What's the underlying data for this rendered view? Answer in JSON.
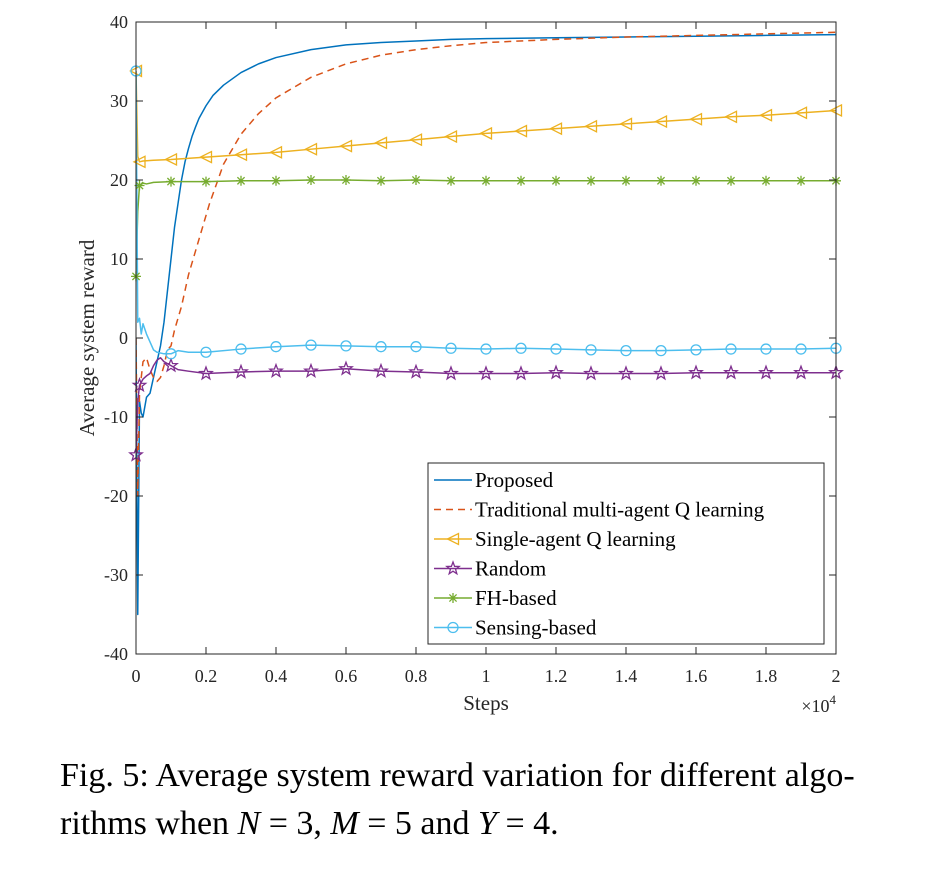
{
  "caption": {
    "line1": "Fig. 5: Average system reward variation for different algo-",
    "line2_prefix": "rithms when ",
    "var_n": "N",
    "eq_n": " = 3, ",
    "var_m": "M",
    "eq_m": " = 5 and ",
    "var_y": "Y",
    "eq_y": " = 4."
  },
  "chart_data": {
    "type": "line",
    "xlabel": "Steps",
    "ylabel": "Average system reward",
    "x_multiplier_label": "×10",
    "x_multiplier_exp": "4",
    "xlim": [
      0,
      2
    ],
    "ylim": [
      -40,
      40
    ],
    "xticks": [
      0,
      0.2,
      0.4,
      0.6,
      0.8,
      1,
      1.2,
      1.4,
      1.6,
      1.8,
      2
    ],
    "xtick_labels": [
      "0",
      "0.2",
      "0.4",
      "0.6",
      "0.8",
      "1",
      "1.2",
      "1.4",
      "1.6",
      "1.8",
      "2"
    ],
    "yticks": [
      -40,
      -30,
      -20,
      -10,
      0,
      10,
      20,
      30,
      40
    ],
    "ytick_labels": [
      "-40",
      "-30",
      "-20",
      "-10",
      "0",
      "10",
      "20",
      "30",
      "40"
    ],
    "legend_position": "bottom-right",
    "series": [
      {
        "name": "Proposed",
        "color": "#0072BD",
        "dash": "solid",
        "marker": "none",
        "x": [
          0,
          0.005,
          0.01,
          0.015,
          0.02,
          0.03,
          0.04,
          0.05,
          0.06,
          0.07,
          0.08,
          0.09,
          0.1,
          0.11,
          0.12,
          0.13,
          0.14,
          0.15,
          0.16,
          0.17,
          0.18,
          0.2,
          0.22,
          0.25,
          0.3,
          0.35,
          0.4,
          0.5,
          0.6,
          0.7,
          0.8,
          0.9,
          1.0,
          1.2,
          1.4,
          1.6,
          1.8,
          2.0
        ],
        "y": [
          0,
          -35,
          -8,
          -9.5,
          -10,
          -7.5,
          -7,
          -5,
          -3,
          -1,
          2,
          6,
          10,
          14,
          17,
          20,
          22.3,
          24,
          25.5,
          26.7,
          27.8,
          29.4,
          30.7,
          32,
          33.6,
          34.7,
          35.5,
          36.5,
          37.1,
          37.4,
          37.6,
          37.8,
          37.9,
          38.0,
          38.1,
          38.2,
          38.3,
          38.4
        ]
      },
      {
        "name": "Traditional multi-agent Q learning",
        "color": "#D95319",
        "dash": "dashed",
        "marker": "none",
        "x": [
          0,
          0.005,
          0.01,
          0.02,
          0.03,
          0.04,
          0.05,
          0.06,
          0.07,
          0.08,
          0.09,
          0.1,
          0.11,
          0.12,
          0.13,
          0.14,
          0.15,
          0.17,
          0.19,
          0.21,
          0.23,
          0.25,
          0.3,
          0.35,
          0.4,
          0.5,
          0.6,
          0.7,
          0.8,
          0.9,
          1.0,
          1.2,
          1.4,
          1.6,
          1.8,
          2.0
        ],
        "y": [
          0,
          -20,
          -7,
          -3,
          -2.5,
          -4,
          -5,
          -5.5,
          -5,
          -3.5,
          -1.5,
          -1,
          1,
          2.5,
          4,
          6,
          8,
          11,
          14,
          17,
          19.5,
          22,
          25.8,
          28.4,
          30.4,
          33,
          34.7,
          35.8,
          36.5,
          37,
          37.4,
          37.8,
          38.1,
          38.3,
          38.5,
          38.7
        ]
      },
      {
        "name": "Single-agent Q learning",
        "color": "#EDB120",
        "dash": "solid",
        "marker": "triangle-left",
        "x": [
          0,
          0.005,
          0.01,
          0.02,
          0.05,
          0.1,
          0.2,
          0.3,
          0.4,
          0.5,
          0.6,
          0.7,
          0.8,
          0.9,
          1.0,
          1.1,
          1.2,
          1.3,
          1.4,
          1.5,
          1.6,
          1.7,
          1.8,
          1.9,
          2.0
        ],
        "y": [
          33.8,
          23,
          22.3,
          22.4,
          22.5,
          22.6,
          22.9,
          23.2,
          23.5,
          23.9,
          24.3,
          24.7,
          25.1,
          25.5,
          25.9,
          26.2,
          26.5,
          26.8,
          27.1,
          27.4,
          27.7,
          28.0,
          28.2,
          28.5,
          28.8
        ],
        "markers_at": [
          0,
          0.01,
          0.1,
          0.2,
          0.3,
          0.4,
          0.5,
          0.6,
          0.7,
          0.8,
          0.9,
          1.0,
          1.1,
          1.2,
          1.3,
          1.4,
          1.5,
          1.6,
          1.7,
          1.8,
          1.9,
          2.0
        ]
      },
      {
        "name": "Random",
        "color": "#7E2F8E",
        "dash": "solid",
        "marker": "pentagram",
        "x": [
          0,
          0.005,
          0.01,
          0.02,
          0.03,
          0.04,
          0.05,
          0.06,
          0.07,
          0.08,
          0.1,
          0.12,
          0.15,
          0.2,
          0.3,
          0.4,
          0.5,
          0.6,
          0.7,
          0.8,
          0.9,
          1.0,
          1.1,
          1.2,
          1.3,
          1.4,
          1.5,
          1.6,
          1.7,
          1.8,
          1.9,
          2.0
        ],
        "y": [
          -14.8,
          -8,
          -6,
          -5.2,
          -4.8,
          -4.5,
          -3.5,
          -2.8,
          -2.5,
          -3,
          -3.5,
          -4,
          -4.2,
          -4.5,
          -4.3,
          -4.2,
          -4.2,
          -3.9,
          -4.2,
          -4.3,
          -4.5,
          -4.5,
          -4.5,
          -4.4,
          -4.5,
          -4.5,
          -4.5,
          -4.4,
          -4.4,
          -4.4,
          -4.4,
          -4.4
        ],
        "markers_at": [
          0,
          0.01,
          0.1,
          0.2,
          0.3,
          0.4,
          0.5,
          0.6,
          0.7,
          0.8,
          0.9,
          1.0,
          1.1,
          1.2,
          1.3,
          1.4,
          1.5,
          1.6,
          1.7,
          1.8,
          1.9,
          2.0
        ]
      },
      {
        "name": "FH-based",
        "color": "#77AC30",
        "dash": "solid",
        "marker": "asterisk",
        "x": [
          0,
          0.005,
          0.01,
          0.02,
          0.03,
          0.05,
          0.1,
          0.2,
          0.3,
          0.4,
          0.5,
          0.6,
          0.7,
          0.8,
          0.9,
          1.0,
          1.2,
          1.4,
          1.6,
          1.8,
          2.0
        ],
        "y": [
          7.8,
          16,
          19.3,
          19.6,
          19.5,
          19.7,
          19.8,
          19.8,
          19.9,
          19.9,
          20,
          20,
          19.9,
          20,
          19.9,
          19.9,
          19.9,
          19.9,
          19.9,
          19.9,
          19.9
        ],
        "markers_at": [
          0,
          0.01,
          0.1,
          0.2,
          0.3,
          0.4,
          0.5,
          0.6,
          0.7,
          0.8,
          0.9,
          1.0,
          1.1,
          1.2,
          1.3,
          1.4,
          1.5,
          1.6,
          1.7,
          1.8,
          1.9,
          2.0
        ]
      },
      {
        "name": "Sensing-based",
        "color": "#4DBEEE",
        "dash": "solid",
        "marker": "circle",
        "x": [
          0,
          0.005,
          0.01,
          0.015,
          0.02,
          0.03,
          0.04,
          0.05,
          0.06,
          0.08,
          0.1,
          0.12,
          0.15,
          0.2,
          0.3,
          0.4,
          0.5,
          0.6,
          0.7,
          0.8,
          0.9,
          1.0,
          1.1,
          1.2,
          1.3,
          1.4,
          1.5,
          1.6,
          1.7,
          1.8,
          1.9,
          2.0
        ],
        "y": [
          33.8,
          2,
          2.5,
          0.5,
          1.8,
          0.5,
          -0.5,
          -1.5,
          -1.8,
          -2,
          -2,
          -1.6,
          -1.8,
          -1.8,
          -1.4,
          -1.1,
          -0.9,
          -1.0,
          -1.1,
          -1.1,
          -1.3,
          -1.4,
          -1.3,
          -1.4,
          -1.5,
          -1.6,
          -1.6,
          -1.5,
          -1.4,
          -1.4,
          -1.4,
          -1.3
        ],
        "markers_at": [
          0,
          0.1,
          0.2,
          0.3,
          0.4,
          0.5,
          0.6,
          0.7,
          0.8,
          0.9,
          1.0,
          1.1,
          1.2,
          1.3,
          1.4,
          1.5,
          1.6,
          1.7,
          1.8,
          1.9,
          2.0
        ]
      }
    ]
  }
}
